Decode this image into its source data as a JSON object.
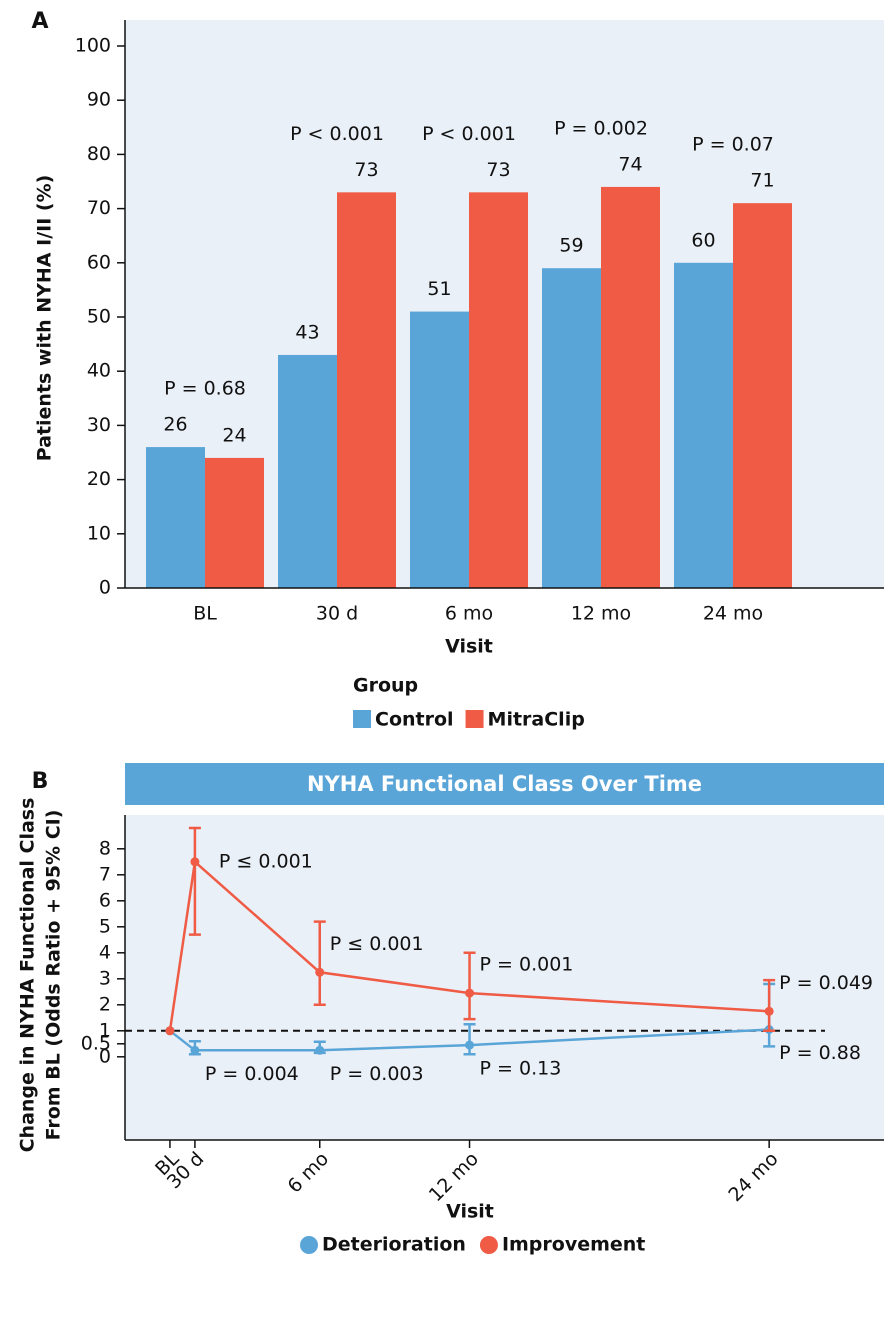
{
  "chart_data": [
    {
      "type": "bar",
      "panel": "A",
      "categories": [
        "BL",
        "30 d",
        "6 mo",
        "12 mo",
        "24 mo"
      ],
      "series": [
        {
          "name": "Control",
          "color": "#5aa5d8",
          "values": [
            26,
            43,
            51,
            59,
            60
          ]
        },
        {
          "name": "MitraClip",
          "color": "#ef5b45",
          "values": [
            24,
            73,
            73,
            74,
            71
          ]
        }
      ],
      "annotations": [
        "P = 0.68",
        "P < 0.001",
        "P < 0.001",
        "P = 0.002",
        "P = 0.07"
      ],
      "ylim": [
        0,
        100
      ],
      "yticks": [
        0,
        10,
        20,
        30,
        40,
        50,
        60,
        70,
        80,
        90,
        100
      ],
      "ylabel": "Patients with NYHA I/II (%)",
      "xlabel": "Visit",
      "legend_title": "Group"
    },
    {
      "type": "line",
      "panel": "B",
      "title": "NYHA Functional Class Over Time",
      "x": [
        0,
        1,
        6,
        12,
        24
      ],
      "series": [
        {
          "name": "Deterioration",
          "color": "#5aa5d8",
          "values": [
            1,
            0.25,
            0.25,
            0.45,
            1.05
          ],
          "lower": [
            null,
            0.1,
            0.15,
            0.1,
            0.4
          ],
          "upper": [
            null,
            0.6,
            0.58,
            1.25,
            2.8
          ],
          "labels": [
            null,
            "P = 0.004",
            "P = 0.003",
            "P = 0.13",
            "P = 0.88"
          ]
        },
        {
          "name": "Improvement",
          "color": "#ef5b45",
          "values": [
            1,
            7.5,
            3.25,
            2.45,
            1.75
          ],
          "lower": [
            null,
            4.7,
            2.0,
            1.45,
            1.0
          ],
          "upper": [
            null,
            8.8,
            5.2,
            4.0,
            2.95
          ],
          "labels": [
            null,
            "P ≤ 0.001",
            "P ≤ 0.001",
            "P = 0.001",
            "P = 0.049"
          ]
        }
      ],
      "reference_line": 1,
      "xlim": [
        -1.8,
        28.6
      ],
      "xticks": [
        {
          "value": 0,
          "label": "BL"
        },
        {
          "value": 1,
          "label": "30 d"
        },
        {
          "value": 6,
          "label": "6 mo"
        },
        {
          "value": 12,
          "label": "12 mo"
        },
        {
          "value": 24,
          "label": "24 mo"
        }
      ],
      "ylim": [
        -3.2,
        9.3
      ],
      "yticks": [
        0,
        0.5,
        1,
        2,
        3,
        4,
        5,
        6,
        7,
        8
      ],
      "ylabel": [
        "Change in NYHA Functional Class",
        "From BL (Odds Ratio + 95% CI)"
      ],
      "xlabel": "Visit"
    }
  ]
}
